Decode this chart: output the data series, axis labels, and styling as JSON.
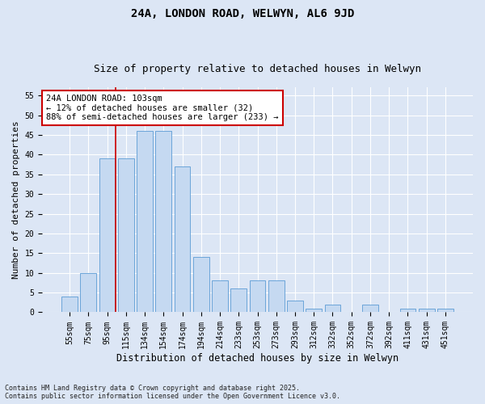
{
  "title": "24A, LONDON ROAD, WELWYN, AL6 9JD",
  "subtitle": "Size of property relative to detached houses in Welwyn",
  "xlabel": "Distribution of detached houses by size in Welwyn",
  "ylabel": "Number of detached properties",
  "categories": [
    "55sqm",
    "75sqm",
    "95sqm",
    "115sqm",
    "134sqm",
    "154sqm",
    "174sqm",
    "194sqm",
    "214sqm",
    "233sqm",
    "253sqm",
    "273sqm",
    "293sqm",
    "312sqm",
    "332sqm",
    "352sqm",
    "372sqm",
    "392sqm",
    "411sqm",
    "431sqm",
    "451sqm"
  ],
  "values": [
    4,
    10,
    39,
    39,
    46,
    46,
    37,
    14,
    8,
    6,
    8,
    8,
    3,
    1,
    2,
    0,
    2,
    0,
    1,
    1,
    1
  ],
  "bar_color": "#c5d9f1",
  "bar_edge_color": "#5b9bd5",
  "annotation_text": "24A LONDON ROAD: 103sqm\n← 12% of detached houses are smaller (32)\n88% of semi-detached houses are larger (233) →",
  "annotation_box_color": "#ffffff",
  "annotation_box_edge_color": "#cc0000",
  "highlight_line_color": "#cc0000",
  "ylim": [
    0,
    57
  ],
  "yticks": [
    0,
    5,
    10,
    15,
    20,
    25,
    30,
    35,
    40,
    45,
    50,
    55
  ],
  "footer_text": "Contains HM Land Registry data © Crown copyright and database right 2025.\nContains public sector information licensed under the Open Government Licence v3.0.",
  "background_color": "#dce6f5",
  "plot_background_color": "#dce6f5",
  "grid_color": "#ffffff",
  "title_fontsize": 10,
  "subtitle_fontsize": 9,
  "xlabel_fontsize": 8.5,
  "ylabel_fontsize": 8,
  "tick_fontsize": 7,
  "annotation_fontsize": 7.5,
  "footer_fontsize": 6
}
